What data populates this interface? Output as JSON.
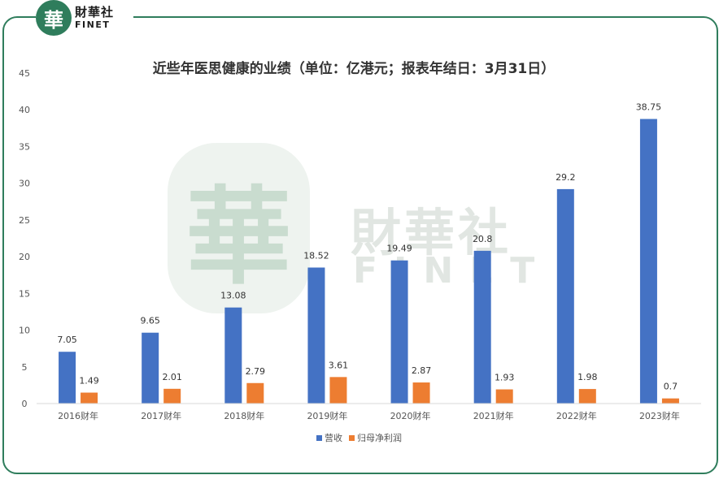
{
  "brand": {
    "seal_char": "華",
    "name_cn": "財華社",
    "name_en": "FINET"
  },
  "colors": {
    "frame": "#2f7d5c",
    "revenue": "#4472c4",
    "profit": "#ed7d31",
    "axis": "#d9d9d9"
  },
  "chart_data": {
    "type": "bar",
    "title": "近些年医思健康的业绩（单位：亿港元；报表年结日：3月31日）",
    "xlabel": "",
    "ylabel": "",
    "ylim": [
      0,
      45
    ],
    "yticks": [
      0,
      5,
      10,
      15,
      20,
      25,
      30,
      35,
      40,
      45
    ],
    "grid": false,
    "legend_position": "bottom",
    "categories": [
      "2016财年",
      "2017财年",
      "2018财年",
      "2019财年",
      "2020财年",
      "2021财年",
      "2022财年",
      "2023财年"
    ],
    "series": [
      {
        "name": "营收",
        "color": "#4472c4",
        "values": [
          7.05,
          9.65,
          13.08,
          18.52,
          19.49,
          20.8,
          29.2,
          38.75
        ]
      },
      {
        "name": "归母净利润",
        "color": "#ed7d31",
        "values": [
          1.49,
          2.01,
          2.79,
          3.61,
          2.87,
          1.93,
          1.98,
          0.7
        ]
      }
    ]
  }
}
